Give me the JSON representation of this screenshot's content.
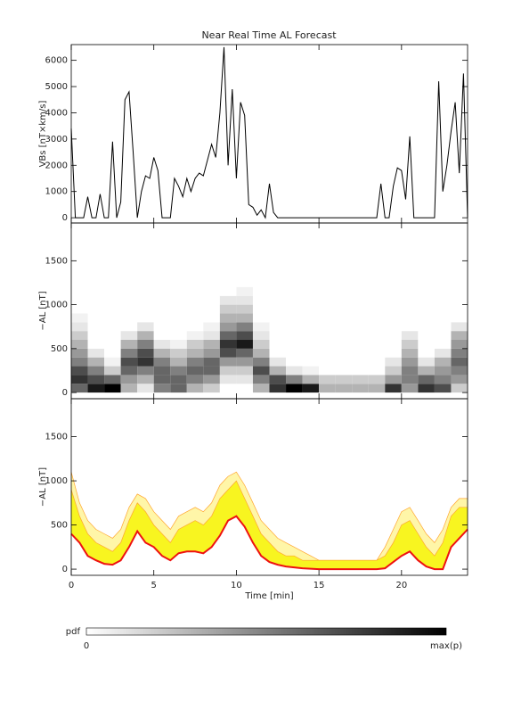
{
  "chart_data": [
    {
      "type": "line",
      "title": "Near Real Time AL Forecast",
      "ylabel": "VBs [nT×km/s]",
      "color": "#000000",
      "xlim": [
        0,
        24
      ],
      "xticks": [
        0,
        5,
        10,
        15,
        20
      ],
      "ylim": [
        -200,
        6600
      ],
      "yticks": [
        0,
        1000,
        2000,
        3000,
        4000,
        5000,
        6000
      ],
      "x": [
        0,
        0.25,
        0.5,
        0.75,
        1,
        1.25,
        1.5,
        1.75,
        2,
        2.25,
        2.5,
        2.75,
        3,
        3.25,
        3.5,
        3.75,
        4,
        4.25,
        4.5,
        4.75,
        5,
        5.25,
        5.5,
        5.75,
        6,
        6.25,
        6.5,
        6.75,
        7,
        7.25,
        7.5,
        7.75,
        8,
        8.25,
        8.5,
        8.75,
        9,
        9.25,
        9.5,
        9.75,
        10,
        10.25,
        10.5,
        10.75,
        11,
        11.25,
        11.5,
        11.75,
        12,
        12.25,
        12.5,
        12.75,
        13,
        13.25,
        13.5,
        13.75,
        14,
        14.25,
        14.5,
        14.75,
        15,
        15.25,
        15.5,
        15.75,
        16,
        16.25,
        16.5,
        16.75,
        17,
        17.25,
        17.5,
        17.75,
        18,
        18.25,
        18.5,
        18.75,
        19,
        19.25,
        19.5,
        19.75,
        20,
        20.25,
        20.5,
        20.75,
        21,
        21.25,
        21.5,
        21.75,
        22,
        22.25,
        22.5,
        22.75,
        23,
        23.25,
        23.5,
        23.75,
        24
      ],
      "values": [
        3400,
        0,
        0,
        0,
        800,
        0,
        0,
        900,
        0,
        0,
        2900,
        0,
        600,
        4500,
        4800,
        2500,
        0,
        1000,
        1600,
        1500,
        2300,
        1800,
        0,
        0,
        0,
        1500,
        1200,
        800,
        1500,
        1000,
        1500,
        1700,
        1600,
        2200,
        2800,
        2300,
        4000,
        6500,
        2000,
        4900,
        1500,
        4400,
        3900,
        500,
        400,
        100,
        300,
        0,
        1300,
        200,
        0,
        0,
        0,
        0,
        0,
        0,
        0,
        0,
        0,
        0,
        0,
        0,
        0,
        0,
        0,
        0,
        0,
        0,
        0,
        0,
        0,
        0,
        0,
        0,
        0,
        1300,
        0,
        0,
        1200,
        1900,
        1800,
        700,
        3100,
        0,
        0,
        0,
        0,
        0,
        0,
        5200,
        1000,
        2000,
        3300,
        4400,
        1700,
        5500,
        0
      ]
    },
    {
      "type": "heatmap",
      "ylabel": "−AL [nT]",
      "xlim": [
        0,
        24
      ],
      "xticks": [
        0,
        5,
        10,
        15,
        20
      ],
      "ylim": [
        -70,
        1930
      ],
      "yticks": [
        0,
        500,
        1000,
        1500
      ],
      "x_bins": [
        0,
        1,
        2,
        3,
        4,
        5,
        6,
        7,
        8,
        9,
        10,
        11,
        12,
        13,
        14,
        15,
        16,
        17,
        18,
        19,
        20,
        21,
        22,
        23,
        24
      ],
      "y_bins": [
        0,
        100,
        200,
        300,
        400,
        500,
        600,
        700,
        800,
        900,
        1000,
        1100,
        1200
      ],
      "z": [
        [
          0.6,
          0.8,
          0.7,
          0.5,
          0.4,
          0.3,
          0.2,
          0.1,
          0.05,
          0,
          0,
          0
        ],
        [
          0.9,
          0.7,
          0.5,
          0.3,
          0.1,
          0,
          0,
          0,
          0,
          0,
          0,
          0
        ],
        [
          1,
          0.6,
          0.2,
          0.05,
          0,
          0,
          0,
          0,
          0,
          0,
          0,
          0
        ],
        [
          0.3,
          0.4,
          0.6,
          0.7,
          0.5,
          0.3,
          0.1,
          0,
          0,
          0,
          0,
          0
        ],
        [
          0.1,
          0.3,
          0.5,
          0.8,
          0.7,
          0.5,
          0.3,
          0.1,
          0,
          0,
          0,
          0
        ],
        [
          0.5,
          0.6,
          0.6,
          0.5,
          0.3,
          0.1,
          0,
          0,
          0,
          0,
          0,
          0
        ],
        [
          0.6,
          0.6,
          0.5,
          0.3,
          0.2,
          0.05,
          0,
          0,
          0,
          0,
          0,
          0
        ],
        [
          0.3,
          0.5,
          0.6,
          0.5,
          0.3,
          0.2,
          0.05,
          0,
          0,
          0,
          0,
          0
        ],
        [
          0.2,
          0.4,
          0.6,
          0.6,
          0.4,
          0.3,
          0.1,
          0.05,
          0,
          0,
          0,
          0
        ],
        [
          0,
          0.1,
          0.2,
          0.4,
          0.7,
          0.8,
          0.6,
          0.4,
          0.3,
          0.2,
          0.1,
          0
        ],
        [
          0,
          0.1,
          0.2,
          0.4,
          0.6,
          0.9,
          0.7,
          0.5,
          0.3,
          0.2,
          0.1,
          0.05
        ],
        [
          0.3,
          0.5,
          0.7,
          0.5,
          0.3,
          0.2,
          0.1,
          0.05,
          0,
          0,
          0,
          0
        ],
        [
          0.8,
          0.7,
          0.3,
          0.1,
          0,
          0,
          0,
          0,
          0,
          0,
          0,
          0
        ],
        [
          1,
          0.5,
          0.1,
          0,
          0,
          0,
          0,
          0,
          0,
          0,
          0,
          0
        ],
        [
          0.9,
          0.3,
          0.05,
          0,
          0,
          0,
          0,
          0,
          0,
          0,
          0,
          0
        ],
        [
          0.3,
          0.2,
          0,
          0,
          0,
          0,
          0,
          0,
          0,
          0,
          0,
          0
        ],
        [
          0.3,
          0.2,
          0,
          0,
          0,
          0,
          0,
          0,
          0,
          0,
          0,
          0
        ],
        [
          0.3,
          0.2,
          0,
          0,
          0,
          0,
          0,
          0,
          0,
          0,
          0,
          0
        ],
        [
          0.3,
          0.2,
          0,
          0,
          0,
          0,
          0,
          0,
          0,
          0,
          0,
          0
        ],
        [
          0.8,
          0.4,
          0.2,
          0.1,
          0,
          0,
          0,
          0,
          0,
          0,
          0,
          0
        ],
        [
          0.4,
          0.5,
          0.5,
          0.4,
          0.3,
          0.2,
          0.1,
          0,
          0,
          0,
          0,
          0
        ],
        [
          0.8,
          0.6,
          0.3,
          0.1,
          0,
          0,
          0,
          0,
          0,
          0,
          0,
          0
        ],
        [
          0.7,
          0.5,
          0.4,
          0.3,
          0.1,
          0,
          0,
          0,
          0,
          0,
          0,
          0
        ],
        [
          0.2,
          0.4,
          0.5,
          0.6,
          0.5,
          0.4,
          0.3,
          0.1,
          0,
          0,
          0,
          0
        ]
      ],
      "colorbar": {
        "label": "pdf",
        "min_label": "0",
        "max_label": "max(p)"
      }
    },
    {
      "type": "band",
      "ylabel": "−AL [nT]",
      "xlabel": "Time [min]",
      "xlim": [
        0,
        24
      ],
      "xticks": [
        0,
        5,
        10,
        15,
        20
      ],
      "ylim": [
        -70,
        1930
      ],
      "yticks": [
        0,
        500,
        1000,
        1500
      ],
      "x": [
        0,
        0.5,
        1,
        1.5,
        2,
        2.5,
        3,
        3.5,
        4,
        4.5,
        5,
        5.5,
        6,
        6.5,
        7,
        7.5,
        8,
        8.5,
        9,
        9.5,
        10,
        10.5,
        11,
        11.5,
        12,
        12.5,
        13,
        13.5,
        14,
        14.5,
        15,
        15.5,
        16,
        16.5,
        17,
        17.5,
        18,
        18.5,
        19,
        19.5,
        20,
        20.5,
        21,
        21.5,
        22,
        22.5,
        23,
        23.5,
        24
      ],
      "series": [
        {
          "color": "#ee1111",
          "values": [
            400,
            300,
            150,
            100,
            60,
            50,
            100,
            250,
            430,
            300,
            250,
            150,
            100,
            180,
            200,
            200,
            180,
            250,
            380,
            550,
            600,
            480,
            300,
            150,
            80,
            50,
            30,
            20,
            10,
            5,
            0,
            0,
            0,
            0,
            0,
            0,
            0,
            0,
            10,
            80,
            150,
            200,
            100,
            30,
            0,
            0,
            250,
            350,
            450
          ]
        },
        {
          "color": "#f8f520",
          "values": [
            900,
            600,
            400,
            300,
            250,
            200,
            300,
            550,
            750,
            650,
            500,
            400,
            300,
            450,
            500,
            550,
            500,
            600,
            800,
            900,
            1000,
            800,
            600,
            400,
            300,
            200,
            150,
            150,
            100,
            100,
            100,
            100,
            100,
            100,
            100,
            100,
            100,
            100,
            150,
            300,
            500,
            550,
            400,
            250,
            150,
            300,
            600,
            700,
            700
          ]
        },
        {
          "color": "#ffa530",
          "values": [
            1100,
            750,
            550,
            450,
            400,
            350,
            450,
            700,
            850,
            800,
            650,
            550,
            450,
            600,
            650,
            700,
            650,
            750,
            950,
            1050,
            1100,
            950,
            750,
            550,
            450,
            350,
            300,
            250,
            200,
            150,
            100,
            100,
            100,
            100,
            100,
            100,
            100,
            100,
            250,
            450,
            650,
            700,
            550,
            400,
            300,
            450,
            700,
            800,
            800
          ]
        }
      ]
    }
  ]
}
